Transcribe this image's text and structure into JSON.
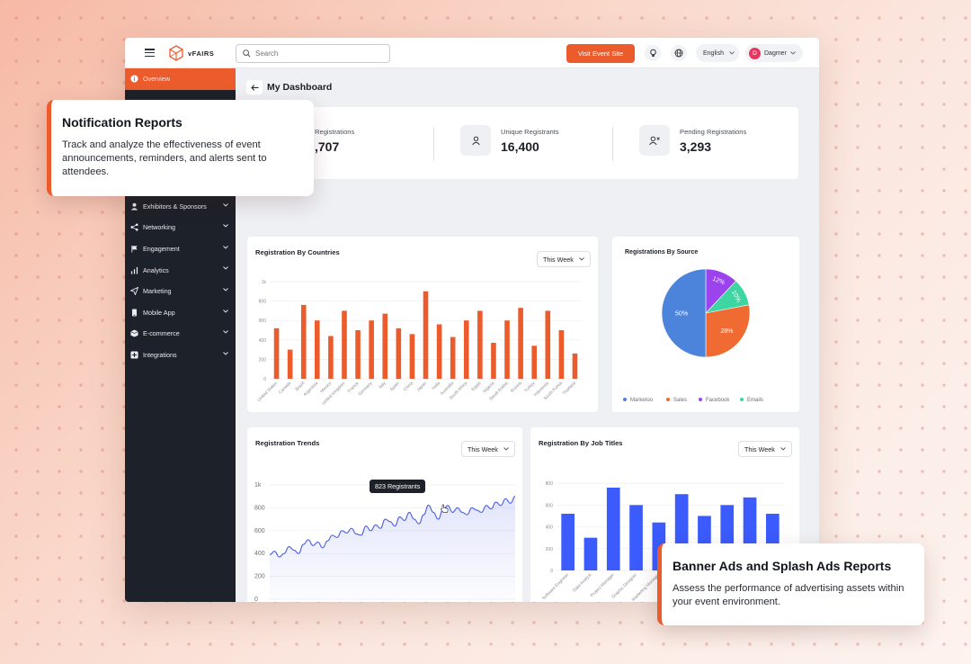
{
  "header": {
    "logo_text": "vFAIRS",
    "search_placeholder": "Search",
    "visit_button": "Visit Event Site",
    "language": "English",
    "user_name": "Dagmer",
    "user_initial": "D"
  },
  "sidebar": {
    "items": [
      {
        "label": "Overview",
        "icon": "info-icon",
        "active": true
      },
      {
        "label": "Exhibitors & Sponsors",
        "icon": "person-icon"
      },
      {
        "label": "Networking",
        "icon": "share-icon"
      },
      {
        "label": "Engagement",
        "icon": "flag-icon"
      },
      {
        "label": "Analytics",
        "icon": "bar-chart-icon"
      },
      {
        "label": "Marketing",
        "icon": "send-icon"
      },
      {
        "label": "Mobile App",
        "icon": "mobile-icon"
      },
      {
        "label": "E-commerce",
        "icon": "box-icon"
      },
      {
        "label": "Integrations",
        "icon": "plus-square-icon"
      }
    ]
  },
  "main": {
    "title": "My Dashboard",
    "stats": [
      {
        "label": "Registrations",
        "value": ",707"
      },
      {
        "label": "Unique Registrants",
        "value": "16,400"
      },
      {
        "label": "Pending Registrations",
        "value": "3,293"
      }
    ]
  },
  "colors": {
    "accent": "#ec5b2b",
    "bar_orange": "#ec5b2b",
    "bar_blue": "#3b5bfd",
    "sidebar": "#1d2129"
  },
  "countries_card": {
    "title": "Registration By Countries",
    "filter": "This Week"
  },
  "source_card": {
    "title": "Registrations By Source"
  },
  "trends_card": {
    "title": "Registration Trends",
    "filter": "This Week",
    "tooltip": "823 Registrants"
  },
  "jobs_card": {
    "title": "Registration By Job Titles",
    "filter": "This Week"
  },
  "callouts": {
    "notification": {
      "title": "Notification Reports",
      "body": "Track and analyze the effectiveness of event announcements, reminders, and alerts sent to attendees."
    },
    "banner": {
      "title": "Banner Ads and Splash Ads Reports",
      "body": "Assess the performance of advertising assets within your event environment."
    }
  },
  "chart_data": [
    {
      "type": "bar",
      "title": "Registration By Countries",
      "categories": [
        "United States",
        "Canada",
        "Brazil",
        "Argentina",
        "Mexico",
        "United Kingdom",
        "France",
        "Germany",
        "Italy",
        "Spain",
        "China",
        "Japan",
        "India",
        "Australia",
        "South Africa",
        "Egypt",
        "Nigeria",
        "Saudi Arabia",
        "Russia",
        "Turkey",
        "Indonesia",
        "South Korea",
        "Thailand"
      ],
      "values": [
        520,
        300,
        760,
        600,
        440,
        700,
        500,
        600,
        670,
        520,
        460,
        900,
        560,
        430,
        600,
        700,
        370,
        600,
        730,
        340,
        700,
        500,
        260
      ],
      "y_ticks": [
        "0",
        "200",
        "400",
        "600",
        "800",
        "1k"
      ],
      "ylim": [
        0,
        1000
      ]
    },
    {
      "type": "pie",
      "title": "Registrations By Source",
      "labels": [
        "Marketoo",
        "Sales",
        "Facebook",
        "Emails"
      ],
      "values": [
        50,
        28,
        12,
        10
      ],
      "slice_labels": [
        "50%",
        "28%",
        "12%",
        "10%"
      ],
      "colors": [
        "#4c84dc",
        "#ef6b32",
        "#9b44ee",
        "#3dd6a3"
      ],
      "legend": "bottom"
    },
    {
      "type": "line",
      "title": "Registration Trends",
      "y_ticks": [
        "0",
        "200",
        "400",
        "600",
        "800",
        "1k"
      ],
      "ylim": [
        0,
        1000
      ],
      "values": [
        390,
        420,
        370,
        400,
        460,
        430,
        400,
        480,
        520,
        470,
        500,
        450,
        510,
        560,
        540,
        600,
        580,
        620,
        570,
        560,
        640,
        600,
        650,
        620,
        700,
        680,
        640,
        720,
        690,
        760,
        700,
        660,
        740,
        823,
        760,
        700,
        780,
        820,
        760,
        800,
        760,
        740,
        800,
        780,
        760,
        820,
        790,
        850,
        820,
        880,
        840,
        900
      ]
    },
    {
      "type": "bar",
      "title": "Registration By Job Titles",
      "categories": [
        "Software Engineer",
        "Data Analyst",
        "Project Manager",
        "Graphic Designer",
        "Marketing Manager",
        "",
        "",
        "",
        "",
        ""
      ],
      "values": [
        520,
        300,
        760,
        600,
        440,
        700,
        500,
        600,
        670,
        520
      ],
      "y_ticks": [
        "0",
        "200",
        "400",
        "600",
        "800"
      ],
      "ylim": [
        0,
        900
      ]
    }
  ]
}
